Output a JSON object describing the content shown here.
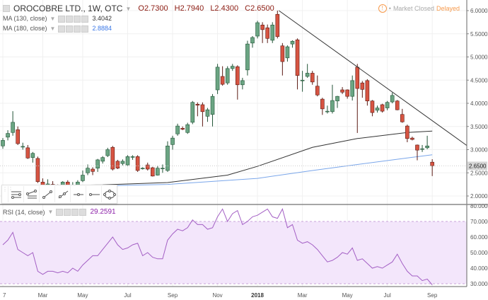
{
  "header": {
    "symbol_title": "OROCOBRE LTD., 1W, OTC",
    "ohlc": {
      "open": "O2.7300",
      "high": "H2.7940",
      "low": "L2.4300",
      "close": "C2.6500"
    },
    "studies": [
      {
        "label": "MA (130, close)",
        "value": "3.4042",
        "color": "#333333"
      },
      {
        "label": "MA (180, close)",
        "value": "2.8884",
        "color": "#3b78e7"
      }
    ],
    "market_status": "Market Closed",
    "delay_status": "Delayed"
  },
  "rsi_legend": {
    "label": "RSI (14, close)",
    "value": "29.2591"
  },
  "toolbar": {
    "tools": [
      "horizontal-lines-icon",
      "parallel-channel-icon",
      "trend-line-icon",
      "ray-icon",
      "horizontal-line-icon",
      "horizontal-ray-icon",
      "ellipse-icon"
    ]
  },
  "colors": {
    "up": "#6ba583",
    "up_border": "#225437",
    "down": "#d75442",
    "down_border": "#5b1a13",
    "ma130": "#333333",
    "ma180": "#7aa6ea",
    "rsi": "#a35fc4",
    "rsi_band": "#f3e6fb",
    "trendline": "#333333"
  },
  "chart_data": [
    {
      "type": "candlestick",
      "interval": "1W",
      "price_axis": {
        "ticks": [
          "6.0000",
          "5.5000",
          "5.0000",
          "4.5000",
          "4.0000",
          "3.5000",
          "3.0000",
          "2.5000",
          "2.0000"
        ],
        "range": [
          1.85,
          6.1
        ],
        "last_price_label": "2.6500",
        "last_price": 2.65
      },
      "time_axis": {
        "ticks": [
          "7",
          "Mar",
          "May",
          "Jul",
          "Sep",
          "Nov",
          "2018",
          "Mar",
          "May",
          "Jul",
          "Sep"
        ]
      },
      "candles_ohlc": [
        [
          3.08,
          3.25,
          3.02,
          3.2
        ],
        [
          3.27,
          3.42,
          3.2,
          3.35
        ],
        [
          3.37,
          3.83,
          3.3,
          3.59
        ],
        [
          3.43,
          3.5,
          3.1,
          3.13
        ],
        [
          3.07,
          3.15,
          3.0,
          3.07
        ],
        [
          3.04,
          3.1,
          2.8,
          2.82
        ],
        [
          2.83,
          2.95,
          2.72,
          2.92
        ],
        [
          2.81,
          2.85,
          2.28,
          2.31
        ],
        [
          2.3,
          2.38,
          2.18,
          2.22
        ],
        [
          2.2,
          2.36,
          2.17,
          2.26
        ],
        [
          2.25,
          2.32,
          2.18,
          2.22
        ],
        [
          2.22,
          2.25,
          2.15,
          2.18
        ],
        [
          2.2,
          2.32,
          2.17,
          2.3
        ],
        [
          2.3,
          2.34,
          2.15,
          2.18
        ],
        [
          2.2,
          2.3,
          2.16,
          2.21
        ],
        [
          2.22,
          2.34,
          2.19,
          2.3
        ],
        [
          2.33,
          2.55,
          2.3,
          2.45
        ],
        [
          2.5,
          2.68,
          2.45,
          2.6
        ],
        [
          2.58,
          2.62,
          2.45,
          2.53
        ],
        [
          2.6,
          2.8,
          2.52,
          2.78
        ],
        [
          2.75,
          2.86,
          2.7,
          2.83
        ],
        [
          2.87,
          3.04,
          2.84,
          3.0
        ],
        [
          3.05,
          3.08,
          2.55,
          2.58
        ],
        [
          2.75,
          2.78,
          2.58,
          2.6
        ],
        [
          2.7,
          2.79,
          2.66,
          2.75
        ],
        [
          2.67,
          2.88,
          2.64,
          2.85
        ],
        [
          2.85,
          2.88,
          2.78,
          2.85
        ],
        [
          2.85,
          2.88,
          2.52,
          2.55
        ],
        [
          2.6,
          2.62,
          2.57,
          2.6
        ],
        [
          2.67,
          2.72,
          2.55,
          2.58
        ],
        [
          2.61,
          2.63,
          2.42,
          2.43
        ],
        [
          2.45,
          2.65,
          2.44,
          2.6
        ],
        [
          2.6,
          2.68,
          2.5,
          2.6
        ],
        [
          2.55,
          3.18,
          2.52,
          3.08
        ],
        [
          3.11,
          3.3,
          3.0,
          3.25
        ],
        [
          3.34,
          3.56,
          3.3,
          3.51
        ],
        [
          3.46,
          3.5,
          3.42,
          3.44
        ],
        [
          3.37,
          3.58,
          3.34,
          3.54
        ],
        [
          3.59,
          4.05,
          3.55,
          4.02
        ],
        [
          3.98,
          4.02,
          3.72,
          3.96
        ],
        [
          3.97,
          4.02,
          3.5,
          3.82
        ],
        [
          3.72,
          3.9,
          3.6,
          3.86
        ],
        [
          3.76,
          4.2,
          3.5,
          4.15
        ],
        [
          4.29,
          4.85,
          4.2,
          4.78
        ],
        [
          4.58,
          4.8,
          4.38,
          4.41
        ],
        [
          4.44,
          4.8,
          4.4,
          4.75
        ],
        [
          4.75,
          4.85,
          4.7,
          4.8
        ],
        [
          4.79,
          4.82,
          4.08,
          4.4
        ],
        [
          4.4,
          4.55,
          4.3,
          4.49
        ],
        [
          4.72,
          5.35,
          4.6,
          5.28
        ],
        [
          5.3,
          5.45,
          5.2,
          5.42
        ],
        [
          5.45,
          5.78,
          5.4,
          5.74
        ],
        [
          5.69,
          5.75,
          5.3,
          5.59
        ],
        [
          5.63,
          5.7,
          5.3,
          5.4
        ],
        [
          5.36,
          5.75,
          5.3,
          5.69
        ],
        [
          5.92,
          6.0,
          5.4,
          5.44
        ],
        [
          5.24,
          5.3,
          4.6,
          4.9
        ],
        [
          4.98,
          5.25,
          4.9,
          5.22
        ],
        [
          5.28,
          5.36,
          5.2,
          5.34
        ],
        [
          5.37,
          5.4,
          4.3,
          4.6
        ],
        [
          4.5,
          4.7,
          4.25,
          4.5
        ],
        [
          4.58,
          4.85,
          4.55,
          4.65
        ],
        [
          4.65,
          4.7,
          4.4,
          4.46
        ],
        [
          4.37,
          4.6,
          4.15,
          4.18
        ],
        [
          4.09,
          4.12,
          3.75,
          3.88
        ],
        [
          3.83,
          3.95,
          3.78,
          3.83
        ],
        [
          3.82,
          4.4,
          3.78,
          4.06
        ],
        [
          4.05,
          4.16,
          3.9,
          4.15
        ],
        [
          4.29,
          4.35,
          4.2,
          4.24
        ],
        [
          4.29,
          4.3,
          4.1,
          4.15
        ],
        [
          4.15,
          4.6,
          4.06,
          4.49
        ],
        [
          4.78,
          4.85,
          3.36,
          4.32
        ],
        [
          4.44,
          4.48,
          4.12,
          4.3
        ],
        [
          4.49,
          4.52,
          3.95,
          4.05
        ],
        [
          4.05,
          4.07,
          3.72,
          3.8
        ],
        [
          3.85,
          3.95,
          3.8,
          3.9
        ],
        [
          3.97,
          3.99,
          3.8,
          3.83
        ],
        [
          3.9,
          4.05,
          3.85,
          4.02
        ],
        [
          4.03,
          4.23,
          4.0,
          4.17
        ],
        [
          4.05,
          4.07,
          3.85,
          3.86
        ],
        [
          3.76,
          3.88,
          3.58,
          3.6
        ],
        [
          3.51,
          3.54,
          3.16,
          3.24
        ],
        [
          3.25,
          3.28,
          3.2,
          3.22
        ],
        [
          3.1,
          3.11,
          2.77,
          2.99
        ],
        [
          3.02,
          3.1,
          2.95,
          3.02
        ],
        [
          3.04,
          3.3,
          3.01,
          3.08
        ],
        [
          2.73,
          2.794,
          2.43,
          2.65
        ]
      ],
      "moving_averages": [
        {
          "name": "MA (130, close)",
          "points_by_week": [
            [
              0,
              2.22
            ],
            [
              20,
              2.24
            ],
            [
              33,
              2.29
            ],
            [
              45,
              2.45
            ],
            [
              51,
              2.64
            ],
            [
              62,
              3.05
            ],
            [
              71,
              3.24
            ],
            [
              81,
              3.37
            ],
            [
              86,
              3.4
            ]
          ]
        },
        {
          "name": "MA (180, close)",
          "points_by_week": [
            [
              0,
              2.2
            ],
            [
              20,
              2.22
            ],
            [
              33,
              2.25
            ],
            [
              51,
              2.38
            ],
            [
              62,
              2.55
            ],
            [
              71,
              2.68
            ],
            [
              81,
              2.82
            ],
            [
              86,
              2.89
            ]
          ]
        }
      ],
      "trendline": {
        "from": [
          55,
          6.0
        ],
        "to_price_at_right_edge": 3.09
      }
    },
    {
      "type": "line",
      "name": "RSI (14, close)",
      "axis": {
        "ticks": [
          "80.0000",
          "70.0000",
          "60.0000",
          "50.0000",
          "40.0000",
          "30.0000"
        ],
        "band": [
          30,
          70
        ],
        "range": [
          30,
          80
        ]
      },
      "values": [
        55,
        58,
        63,
        52,
        50,
        48,
        50,
        38,
        36,
        38,
        38,
        37,
        38,
        37,
        40,
        38,
        42,
        45,
        48,
        48,
        52,
        56,
        60,
        55,
        52,
        53,
        55,
        56,
        48,
        50,
        47,
        46,
        46,
        58,
        62,
        65,
        64,
        66,
        71,
        68,
        68,
        65,
        66,
        73,
        78,
        70,
        75,
        77,
        68,
        70,
        73,
        74,
        76,
        78,
        73,
        72,
        78,
        66,
        68,
        58,
        56,
        57,
        55,
        52,
        48,
        44,
        45,
        47,
        50,
        49,
        53,
        45,
        46,
        43,
        40,
        41,
        40,
        42,
        44,
        49,
        43,
        38,
        35,
        35,
        32,
        33,
        29.26
      ]
    }
  ]
}
